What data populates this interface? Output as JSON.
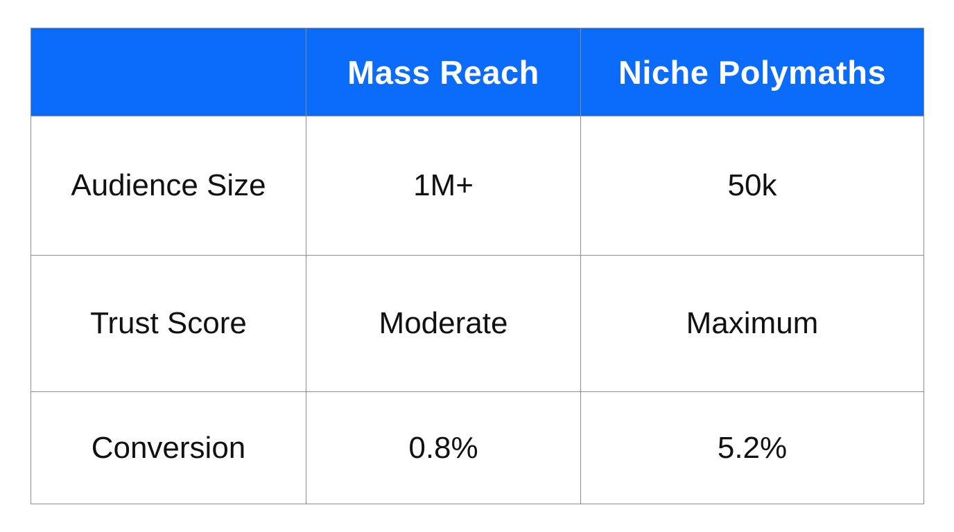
{
  "chart_data": {
    "type": "table",
    "title": "",
    "columns": [
      "",
      "Mass Reach",
      "Niche Polymaths"
    ],
    "rows": [
      [
        "Audience Size",
        "1M+",
        "50k"
      ],
      [
        "Trust Score",
        "Moderate",
        "Maximum"
      ],
      [
        "Conversion",
        "0.8%",
        "5.2%"
      ]
    ]
  },
  "table": {
    "header": [
      "",
      "Mass Reach",
      "Niche Polymaths"
    ],
    "rows": [
      [
        "Audience Size",
        "1M+",
        "50k"
      ],
      [
        "Trust Score",
        "Moderate",
        "Maximum"
      ],
      [
        "Conversion",
        "0.8%",
        "5.2%"
      ]
    ]
  },
  "colors": {
    "header_bg": "#0b6cfa",
    "header_text": "#ffffff",
    "border": "#8c8c8c",
    "body_text": "#111111",
    "page_bg": "#ffffff"
  }
}
